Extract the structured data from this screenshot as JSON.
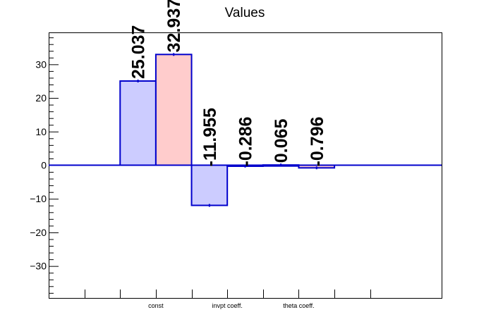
{
  "chart_data": {
    "type": "bar",
    "title": "Values",
    "xlabel": "",
    "ylabel": "",
    "categories": [
      "const",
      "invpt coeff.",
      "theta coeff."
    ],
    "ylim": [
      -39.5,
      39.5
    ],
    "yticks": [
      -30,
      -20,
      -10,
      0,
      10,
      20,
      30
    ],
    "ytick_labels": [
      "−30",
      "−20",
      "−10",
      "0",
      "10",
      "20",
      "30"
    ],
    "series": [
      {
        "values": [
          25.037,
          -11.955,
          0.065
        ],
        "labels": [
          "25.037",
          "-11.955",
          "0.065"
        ],
        "fill": "#ccccff",
        "stroke": "#0000cc"
      },
      {
        "values": [
          32.937,
          -0.286,
          -0.796
        ],
        "labels": [
          "32.937",
          "-0.286",
          "-0.796"
        ],
        "fill": "#ffcccc",
        "stroke": "#0000cc"
      }
    ],
    "grid": false,
    "legend": "none"
  }
}
